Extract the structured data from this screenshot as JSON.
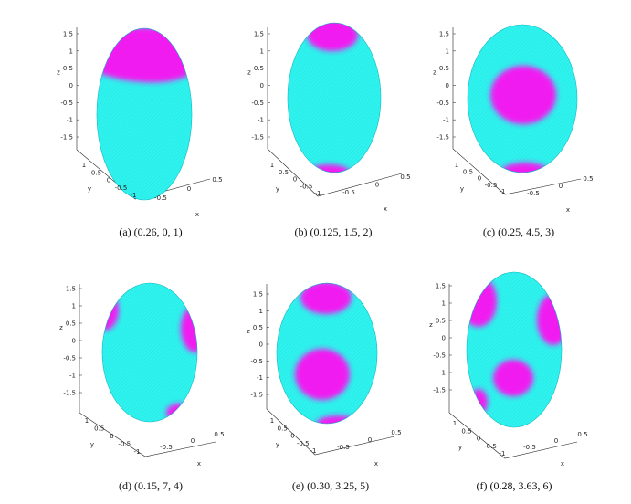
{
  "figure": {
    "panels": [
      {
        "caption": "(a) (0.26, 0, 1)"
      },
      {
        "caption": "(b) (0.125, 1.5, 2)"
      },
      {
        "caption": "(c) (0.25, 4.5, 3)"
      },
      {
        "caption": "(d) (0.15, 7, 4)"
      },
      {
        "caption": "(e) (0.30, 3.25, 5)"
      },
      {
        "caption": "(f) (0.28, 3.63, 6)"
      }
    ],
    "axes": {
      "z_label": "z",
      "y_label": "y",
      "x_label": "x",
      "z_ticks": [
        "1.5",
        "1",
        "0.5",
        "0",
        "-0.5",
        "-1",
        "-1.5"
      ],
      "y_ticks": [
        "1",
        "0.5",
        "0",
        "-0.5",
        "-1"
      ],
      "x_ticks": [
        "-0.5",
        "0",
        "0.5"
      ]
    },
    "colors": {
      "surface": "#2ef2ee",
      "spot": "#f21af2",
      "outline": "#0fb8c2"
    }
  }
}
